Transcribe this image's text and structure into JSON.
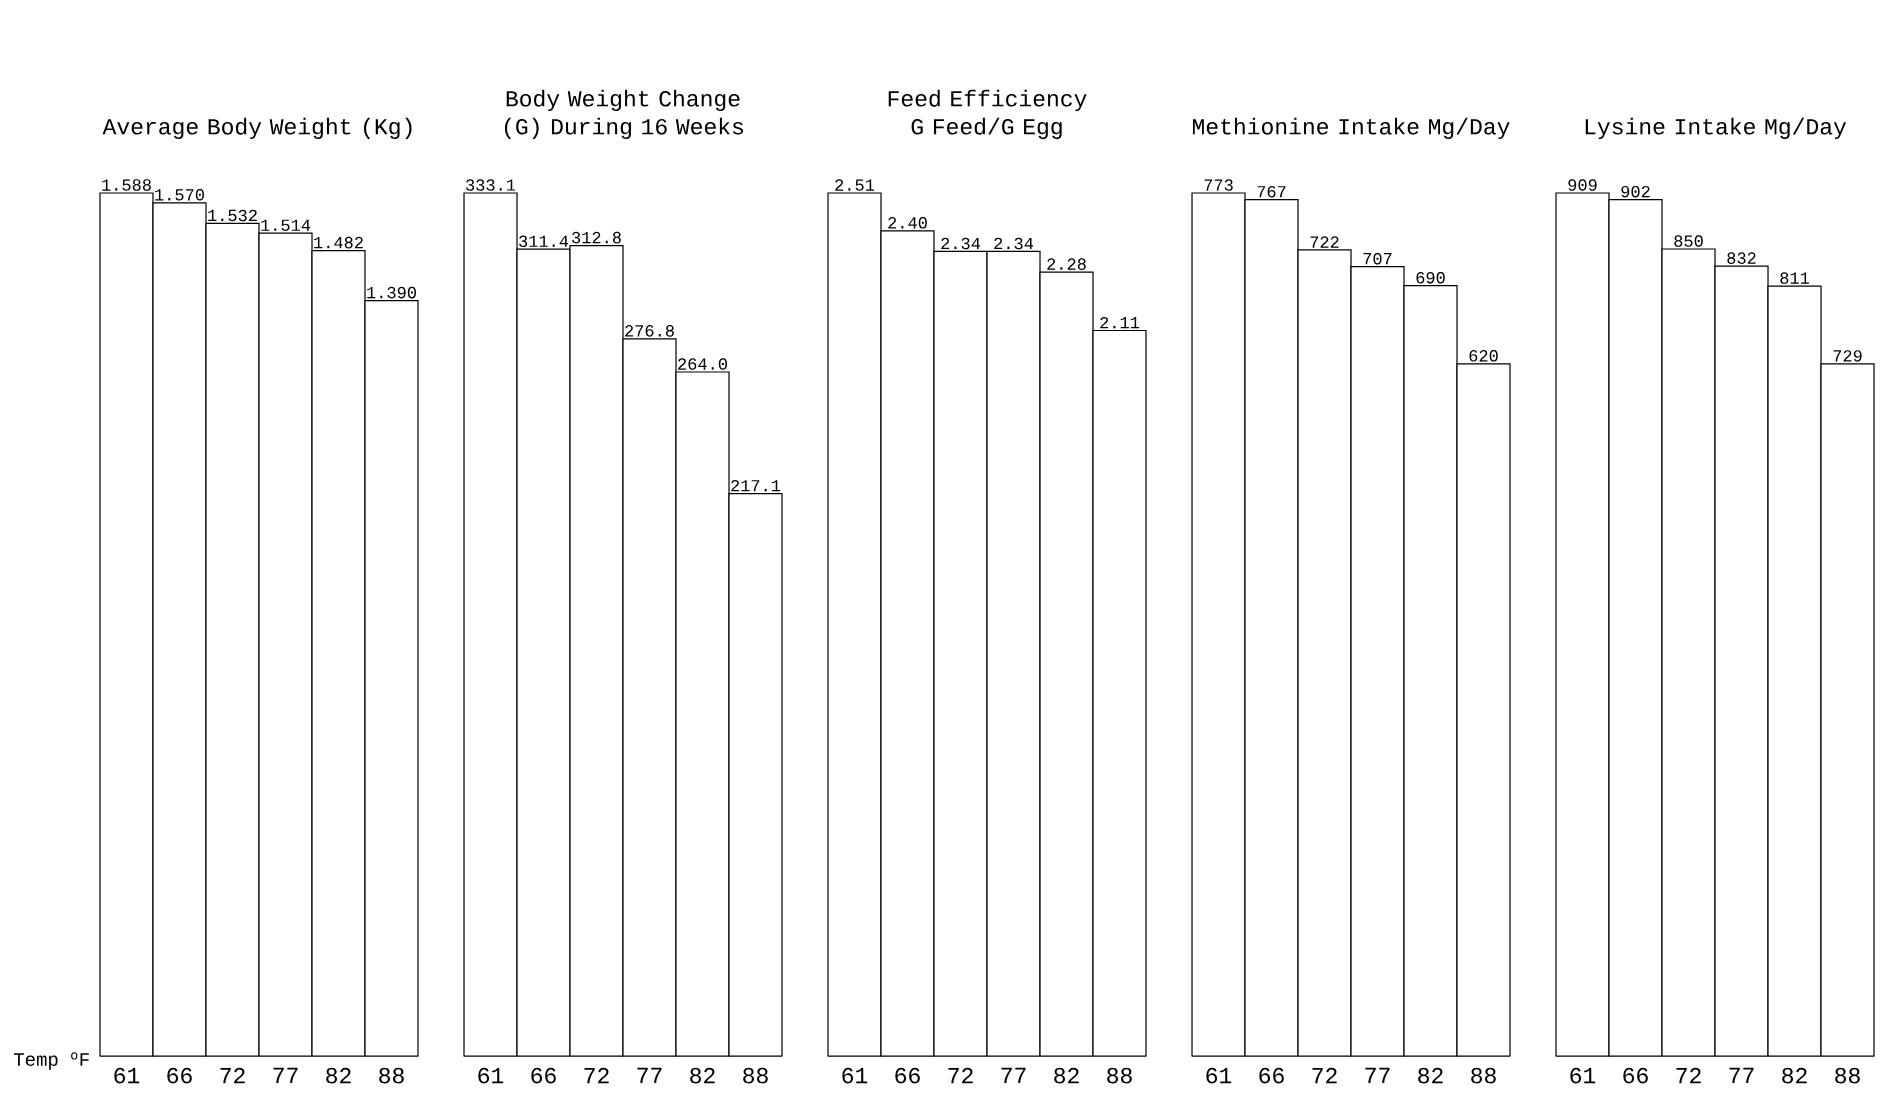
{
  "chart_data": [
    {
      "type": "bar",
      "title": "Average Body Weight (Kg)",
      "xlabel": "Temp $^{o}$F",
      "categories": [
        "61",
        "66",
        "72",
        "77",
        "82",
        "88"
      ],
      "values": [
        1.588,
        1.57,
        1.532,
        1.514,
        1.482,
        1.39
      ],
      "value_labels": [
        "1.588",
        "1.570",
        "1.532",
        "1.514",
        "1.482",
        "1.390"
      ],
      "color": "#ffffff",
      "tick_labels": "x"
    },
    {
      "type": "bar",
      "title": "Body Weight Change (G) During 16 Weeks",
      "categories": [
        "61",
        "66",
        "72",
        "77",
        "82",
        "88"
      ],
      "values": [
        333.1,
        311.4,
        312.8,
        276.8,
        264.0,
        217.1
      ],
      "value_labels": [
        "333.1",
        "311.4",
        "312.8",
        "276.8",
        "264.0",
        "217.1"
      ],
      "color": "#ffffff",
      "tick_labels": "x"
    },
    {
      "type": "bar",
      "title": "Feed Efficiency G Feed/G Egg",
      "categories": [
        "61",
        "66",
        "72",
        "77",
        "82",
        "88"
      ],
      "values": [
        2.51,
        2.4,
        2.34,
        2.34,
        2.28,
        2.11
      ],
      "value_labels": [
        "2.51",
        "2.40",
        "2.34",
        "2.34",
        "2.28",
        "2.11"
      ],
      "color": "#ffffff",
      "tick_labels": "x"
    },
    {
      "type": "bar",
      "title": "Methionine Intake Mg/Day",
      "categories": [
        "61",
        "66",
        "72",
        "77",
        "82",
        "88"
      ],
      "values": [
        773,
        767,
        722,
        707,
        690,
        620
      ],
      "value_labels": [
        "773",
        "767",
        "722",
        "707",
        "690",
        "620"
      ],
      "color": "#ffffff",
      "tick_labels": "x"
    },
    {
      "type": "bar",
      "title": "Lysine Intake Mg/Day",
      "categories": [
        "61",
        "66",
        "72",
        "77",
        "82",
        "88"
      ],
      "values": [
        909,
        902,
        850,
        832,
        811,
        729
      ],
      "value_labels": [
        "909",
        "902",
        "850",
        "832",
        "811",
        "729"
      ],
      "color": "#ffffff",
      "tick_labels": "x"
    }
  ]
}
